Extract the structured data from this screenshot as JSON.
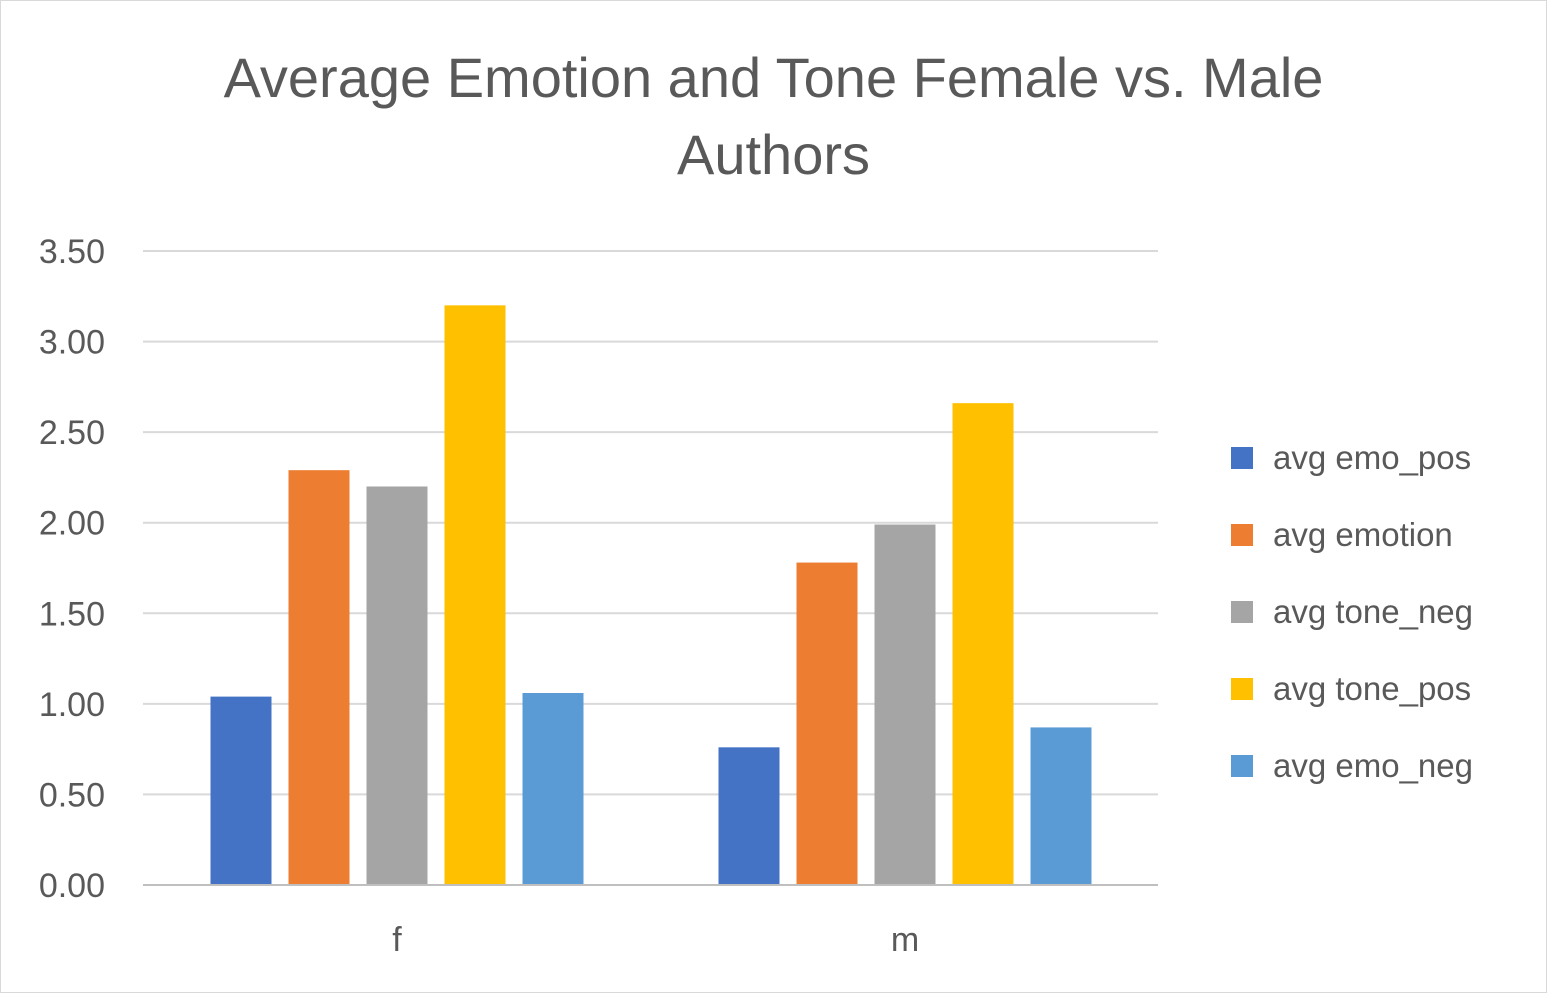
{
  "chart_data": {
    "type": "bar",
    "title": [
      "Average Emotion and Tone Female vs. Male",
      "Authors"
    ],
    "xlabel": "",
    "ylabel": "",
    "categories": [
      "f",
      "m"
    ],
    "ylim": [
      0,
      3.5
    ],
    "yticks": [
      "0.00",
      "0.50",
      "1.00",
      "1.50",
      "2.00",
      "2.50",
      "3.00",
      "3.50"
    ],
    "grid": true,
    "legend_position": "right",
    "series": [
      {
        "name": "avg emo_pos",
        "color": "#4472C4",
        "values": [
          1.04,
          0.76
        ]
      },
      {
        "name": "avg emotion",
        "color": "#ED7D31",
        "values": [
          2.29,
          1.78
        ]
      },
      {
        "name": "avg tone_neg",
        "color": "#A5A5A5",
        "values": [
          2.2,
          1.99
        ]
      },
      {
        "name": "avg tone_pos",
        "color": "#FFC000",
        "values": [
          3.2,
          2.66
        ]
      },
      {
        "name": "avg emo_neg",
        "color": "#5B9BD5",
        "values": [
          1.06,
          0.87
        ]
      }
    ]
  }
}
